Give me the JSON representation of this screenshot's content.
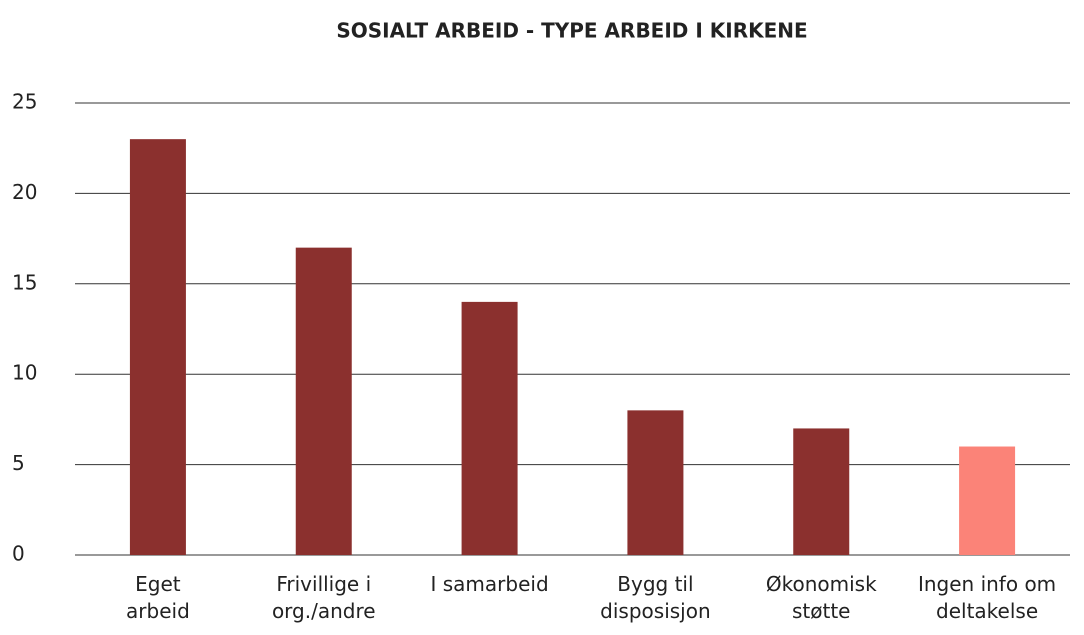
{
  "chart_data": {
    "type": "bar",
    "title": "SOSIALT ARBEID - TYPE ARBEID I KIRKENE",
    "categories": [
      [
        "Eget",
        "arbeid"
      ],
      [
        "Frivillige i",
        "org./andre"
      ],
      [
        "I samarbeid"
      ],
      [
        "Bygg til",
        "disposisjon"
      ],
      [
        "Økonomisk",
        "støtte"
      ],
      [
        "Ingen info om",
        "deltakelse"
      ]
    ],
    "values": [
      23,
      17,
      14,
      8,
      7,
      6
    ],
    "colors": [
      "#8b302e",
      "#8b302e",
      "#8b302e",
      "#8b302e",
      "#8b302e",
      "#fb8378"
    ],
    "ylim": [
      0,
      25
    ],
    "yticks": [
      0,
      5,
      10,
      15,
      20,
      25
    ],
    "grid": true
  }
}
